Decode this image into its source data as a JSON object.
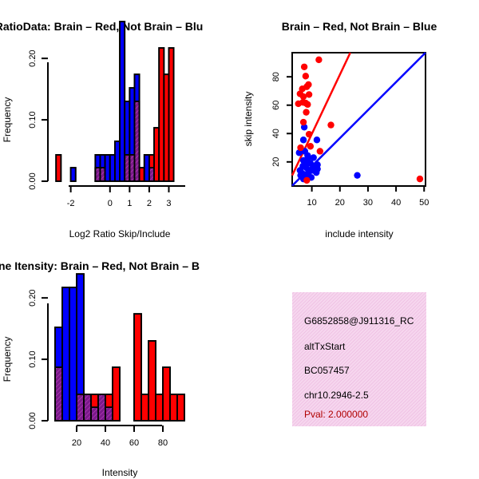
{
  "chart_data": [
    {
      "type": "bar",
      "title": "RatioData: Brain – Red, Not Brain – Blu",
      "xlabel": "Log2 Ratio Skip/Include",
      "ylabel": "Frequency",
      "xlim": [
        -3.1,
        4.1
      ],
      "ylim": [
        0,
        0.26
      ],
      "xticks": [
        -2,
        0,
        1,
        2,
        3
      ],
      "xtick_labels": [
        "-2",
        "0",
        "1",
        "2",
        "3"
      ],
      "yticks": [
        0.0,
        0.1,
        0.2
      ],
      "ytick_labels": [
        "0.00",
        "0.10",
        "0.20"
      ],
      "bin_width": 0.25,
      "series": [
        {
          "name": "Not Brain",
          "color": "#0000ff",
          "bins": [
            [
              -2.0,
              0.022
            ],
            [
              -0.75,
              0.043
            ],
            [
              -0.5,
              0.043
            ],
            [
              -0.25,
              0.043
            ],
            [
              0.0,
              0.043
            ],
            [
              0.25,
              0.065
            ],
            [
              0.5,
              0.26
            ],
            [
              0.75,
              0.13
            ],
            [
              1.0,
              0.152
            ],
            [
              1.25,
              0.174
            ],
            [
              1.75,
              0.043
            ],
            [
              2.0,
              0.022
            ]
          ]
        },
        {
          "name": "Brain",
          "color": "#ff0000",
          "bins": [
            [
              -2.75,
              0.043
            ],
            [
              -0.75,
              0.022
            ],
            [
              -0.5,
              0.022
            ],
            [
              0.75,
              0.043
            ],
            [
              1.0,
              0.043
            ],
            [
              1.25,
              0.13
            ],
            [
              1.5,
              0.022
            ],
            [
              2.0,
              0.043
            ],
            [
              2.25,
              0.087
            ],
            [
              2.5,
              0.217
            ],
            [
              2.75,
              0.174
            ],
            [
              3.0,
              0.217
            ]
          ]
        }
      ]
    },
    {
      "type": "scatter",
      "title": "Brain – Red, Not Brain – Blue",
      "xlabel": "include intensity",
      "ylabel": "skip intensity",
      "xlim": [
        3,
        50.5
      ],
      "ylim": [
        3,
        97
      ],
      "xticks": [
        10,
        20,
        30,
        40,
        50
      ],
      "xtick_labels": [
        "10",
        "20",
        "30",
        "40",
        "50"
      ],
      "yticks": [
        20,
        40,
        60,
        80
      ],
      "ytick_labels": [
        "20",
        "40",
        "60",
        "80"
      ],
      "series": [
        {
          "name": "Not Brain",
          "color": "#0000ff",
          "points": [
            [
              7.3,
              44.5
            ],
            [
              7.0,
              35.5
            ],
            [
              11.8,
              35.5
            ],
            [
              5.5,
              26.5
            ],
            [
              7.5,
              27.5
            ],
            [
              8.5,
              24.5
            ],
            [
              10.6,
              23.0
            ],
            [
              7.0,
              21.0
            ],
            [
              8.2,
              20.0
            ],
            [
              9.5,
              19.0
            ],
            [
              12.0,
              18.0
            ],
            [
              6.8,
              17.0
            ],
            [
              8.0,
              16.0
            ],
            [
              10.8,
              15.0
            ],
            [
              5.8,
              14.0
            ],
            [
              9.0,
              13.0
            ],
            [
              11.6,
              12.5
            ],
            [
              7.5,
              11.0
            ],
            [
              6.0,
              10.5
            ],
            [
              8.8,
              10.0
            ],
            [
              26.2,
              10.5
            ],
            [
              9.8,
              9.0
            ],
            [
              7.0,
              8.0
            ],
            [
              10.5,
              14.0
            ],
            [
              6.5,
              12.0
            ],
            [
              11.0,
              17.0
            ],
            [
              8.5,
              22.0
            ],
            [
              12.0,
              15.0
            ]
          ],
          "fit": [
            [
              3,
              3.2
            ],
            [
              50.5,
              97
            ]
          ]
        },
        {
          "name": "Brain",
          "color": "#ff0000",
          "points": [
            [
              12.5,
              92.0
            ],
            [
              7.3,
              87.0
            ],
            [
              7.8,
              80.5
            ],
            [
              8.8,
              74.5
            ],
            [
              6.6,
              71.5
            ],
            [
              8.2,
              73.0
            ],
            [
              5.8,
              68.0
            ],
            [
              7.0,
              66.0
            ],
            [
              9.0,
              67.5
            ],
            [
              6.8,
              62.0
            ],
            [
              5.2,
              61.0
            ],
            [
              7.8,
              61.5
            ],
            [
              8.5,
              60.5
            ],
            [
              16.8,
              46.0
            ],
            [
              7.0,
              48.0
            ],
            [
              9.0,
              39.5
            ],
            [
              12.9,
              27.5
            ],
            [
              9.5,
              31.0
            ],
            [
              48.5,
              8.0
            ],
            [
              8.2,
              7.0
            ],
            [
              6.0,
              30.0
            ],
            [
              8.0,
              55.0
            ]
          ],
          "fit": [
            [
              3,
              10.5
            ],
            [
              23.7,
              97
            ]
          ]
        }
      ]
    },
    {
      "type": "bar",
      "title": "ne Itensity: Brain – Red, Not Brain – B",
      "xlabel": "Intensity",
      "ylabel": "Frequency",
      "xlim": [
        0,
        100
      ],
      "ylim": [
        0,
        0.26
      ],
      "xticks": [
        20,
        40,
        60,
        80
      ],
      "xtick_labels": [
        "20",
        "40",
        "60",
        "80"
      ],
      "yticks": [
        0.0,
        0.1,
        0.2
      ],
      "ytick_labels": [
        "0.00",
        "0.10",
        "0.20"
      ],
      "bin_width": 5,
      "series": [
        {
          "name": "Not Brain",
          "color": "#0000ff",
          "bins": [
            [
              5,
              0.152
            ],
            [
              10,
              0.217
            ],
            [
              15,
              0.217
            ],
            [
              20,
              0.239
            ],
            [
              25,
              0.043
            ],
            [
              30,
              0.022
            ],
            [
              35,
              0.043
            ],
            [
              40,
              0.022
            ]
          ]
        },
        {
          "name": "Brain",
          "color": "#ff0000",
          "bins": [
            [
              5,
              0.087
            ],
            [
              20,
              0.043
            ],
            [
              25,
              0.043
            ],
            [
              30,
              0.043
            ],
            [
              35,
              0.043
            ],
            [
              40,
              0.043
            ],
            [
              45,
              0.087
            ],
            [
              60,
              0.174
            ],
            [
              65,
              0.043
            ],
            [
              70,
              0.13
            ],
            [
              75,
              0.043
            ],
            [
              80,
              0.087
            ],
            [
              85,
              0.043
            ],
            [
              90,
              0.043
            ]
          ]
        }
      ]
    }
  ],
  "info_panel": {
    "lines": [
      "G6852858@J911316_RC",
      "altTxStart",
      "BC057457",
      "chr10.2946-2.5"
    ],
    "pval": "Pval: 2.000000"
  }
}
